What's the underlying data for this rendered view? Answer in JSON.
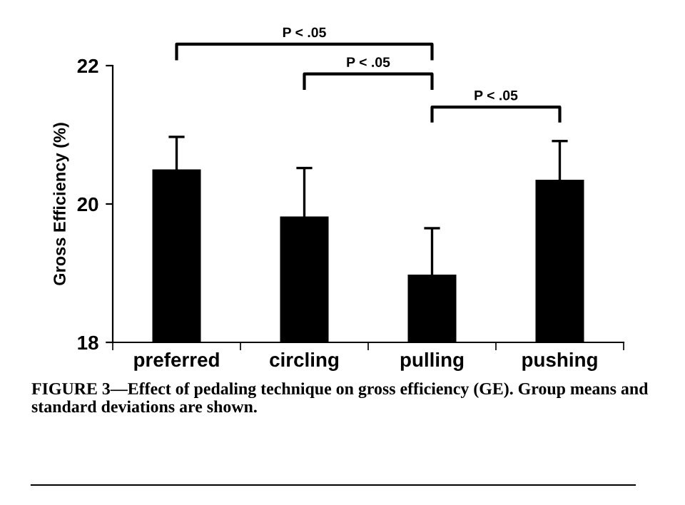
{
  "chart_data": {
    "type": "bar",
    "ylabel": "Gross Efficiency (%)",
    "categories": [
      "preferred",
      "circling",
      "pulling",
      "pushing"
    ],
    "values": [
      20.5,
      19.82,
      18.98,
      20.35
    ],
    "errors": [
      0.47,
      0.7,
      0.67,
      0.56
    ],
    "color": "#000000",
    "ylim": [
      18,
      22
    ],
    "yticks": [
      18,
      20,
      22
    ],
    "grid": false,
    "legend": false,
    "annotations": [
      "P < .05",
      "P < .05",
      "P < .05",
      "FIGURE 3—Effect of pedaling technique on gross efficiency (GE). Group means and standard deviations are shown."
    ]
  }
}
